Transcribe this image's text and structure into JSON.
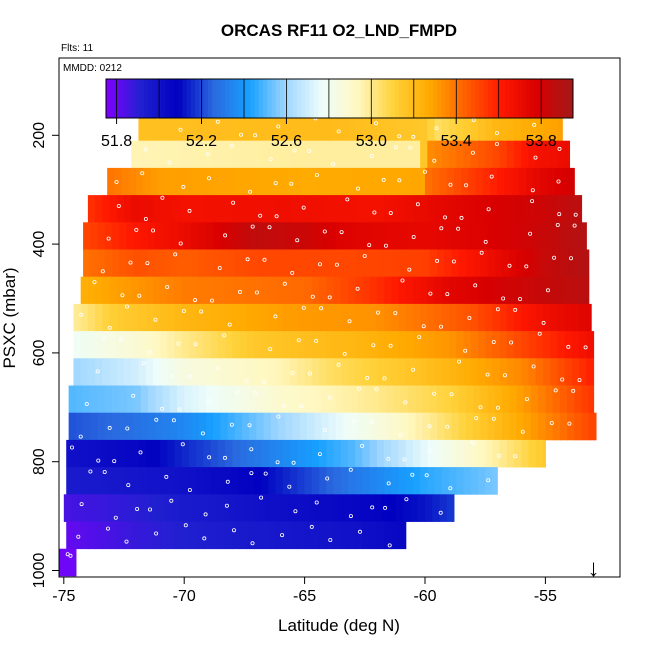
{
  "chart_data": {
    "type": "heatmap",
    "title": "ORCAS RF11 O2_LND_FMPD",
    "flights_label": "Flts: 11",
    "date_label": "MMDD: 0212",
    "xlabel": "Latitude (deg N)",
    "ylabel": "PSXC (mbar)",
    "xlim": [
      -75.2,
      -51.9
    ],
    "ylim": [
      1012,
      58
    ],
    "x_ticks": [
      -75,
      -70,
      -65,
      -60,
      -55
    ],
    "y_ticks": [
      200,
      400,
      600,
      800,
      1000
    ],
    "colorbar": {
      "vmin": 51.75,
      "vmax": 53.95,
      "tick_values": [
        51.8,
        52.2,
        52.6,
        53.0,
        53.4,
        53.8
      ],
      "tick_labels": [
        "51.8",
        "52.2",
        "52.6",
        "53.0",
        "53.4",
        "53.8"
      ],
      "colors": [
        "#8000ff",
        "#2020d0",
        "#0000c0",
        "#2a6ae0",
        "#17a0ff",
        "#9fd6ff",
        "#eefdfb",
        "#fff8c2",
        "#ffd23a",
        "#ffaa00",
        "#ff6000",
        "#ff1800",
        "#d80000",
        "#a31a1a"
      ]
    },
    "flight_track_marker": {
      "latitude": -53.0,
      "symbol": "↓"
    },
    "layers": [
      {
        "p": 185,
        "lat_min": -71.9,
        "lat_max": -54.3,
        "anchors": [
          [
            -71.9,
            53.18
          ],
          [
            -64,
            53.2
          ],
          [
            -60,
            53.15
          ],
          [
            -59.5,
            53.05
          ],
          [
            -57,
            53.22
          ],
          [
            -54.3,
            53.3
          ]
        ]
      },
      {
        "p": 235,
        "lat_min": -72.2,
        "lat_max": -54.0,
        "anchors": [
          [
            -72.2,
            52.95
          ],
          [
            -65,
            52.98
          ],
          [
            -60.1,
            52.98
          ],
          [
            -60,
            53.33
          ],
          [
            -57,
            53.5
          ],
          [
            -55.5,
            53.65
          ],
          [
            -54,
            53.7
          ]
        ]
      },
      {
        "p": 285,
        "lat_min": -73.2,
        "lat_max": -53.8,
        "anchors": [
          [
            -73.2,
            53.4
          ],
          [
            -71,
            53.3
          ],
          [
            -65,
            53.27
          ],
          [
            -60.1,
            53.28
          ],
          [
            -60,
            53.4
          ],
          [
            -57,
            53.6
          ],
          [
            -55,
            53.75
          ],
          [
            -53.8,
            53.8
          ]
        ]
      },
      {
        "p": 335,
        "lat_min": -74.0,
        "lat_max": -53.5,
        "anchors": [
          [
            -74,
            53.55
          ],
          [
            -72,
            53.7
          ],
          [
            -70,
            53.66
          ],
          [
            -66,
            53.68
          ],
          [
            -62,
            53.66
          ],
          [
            -58,
            53.76
          ],
          [
            -55,
            53.82
          ],
          [
            -53.5,
            53.88
          ]
        ]
      },
      {
        "p": 385,
        "lat_min": -74.2,
        "lat_max": -53.3,
        "anchors": [
          [
            -74.2,
            53.5
          ],
          [
            -72,
            53.62
          ],
          [
            -70,
            53.7
          ],
          [
            -67,
            53.86
          ],
          [
            -65,
            53.82
          ],
          [
            -63,
            53.75
          ],
          [
            -60,
            53.72
          ],
          [
            -56,
            53.8
          ],
          [
            -53.3,
            53.9
          ]
        ]
      },
      {
        "p": 435,
        "lat_min": -74.2,
        "lat_max": -53.2,
        "anchors": [
          [
            -74.2,
            53.4
          ],
          [
            -72,
            53.48
          ],
          [
            -70,
            53.45
          ],
          [
            -67,
            53.5
          ],
          [
            -63,
            53.5
          ],
          [
            -60,
            53.52
          ],
          [
            -58,
            53.64
          ],
          [
            -55,
            53.84
          ],
          [
            -53.2,
            53.9
          ]
        ]
      },
      {
        "p": 485,
        "lat_min": -74.3,
        "lat_max": -53.2,
        "anchors": [
          [
            -74.3,
            53.25
          ],
          [
            -72,
            53.32
          ],
          [
            -70,
            53.38
          ],
          [
            -65,
            53.42
          ],
          [
            -62,
            53.56
          ],
          [
            -59,
            53.74
          ],
          [
            -56,
            53.82
          ],
          [
            -53.2,
            53.88
          ]
        ]
      },
      {
        "p": 535,
        "lat_min": -74.6,
        "lat_max": -53.1,
        "anchors": [
          [
            -74.6,
            52.98
          ],
          [
            -73,
            53.12
          ],
          [
            -70,
            53.22
          ],
          [
            -66,
            53.3
          ],
          [
            -62,
            53.33
          ],
          [
            -58,
            53.48
          ],
          [
            -55,
            53.68
          ],
          [
            -53.1,
            53.75
          ]
        ]
      },
      {
        "p": 585,
        "lat_min": -74.6,
        "lat_max": -53.0,
        "anchors": [
          [
            -74.6,
            52.78
          ],
          [
            -72,
            52.88
          ],
          [
            -70,
            53.0
          ],
          [
            -67,
            53.15
          ],
          [
            -63,
            53.22
          ],
          [
            -59,
            53.32
          ],
          [
            -56,
            53.5
          ],
          [
            -53,
            53.68
          ]
        ]
      },
      {
        "p": 635,
        "lat_min": -74.6,
        "lat_max": -53.0,
        "anchors": [
          [
            -74.6,
            52.6
          ],
          [
            -72,
            52.7
          ],
          [
            -70,
            52.85
          ],
          [
            -66,
            52.95
          ],
          [
            -64,
            53.05
          ],
          [
            -60,
            53.18
          ],
          [
            -56,
            53.35
          ],
          [
            -53,
            53.6
          ]
        ]
      },
      {
        "p": 685,
        "lat_min": -74.8,
        "lat_max": -53.0,
        "anchors": [
          [
            -74.8,
            52.5
          ],
          [
            -72,
            52.55
          ],
          [
            -70,
            52.72
          ],
          [
            -66,
            52.9
          ],
          [
            -62,
            53.0
          ],
          [
            -59,
            53.1
          ],
          [
            -56,
            53.3
          ],
          [
            -53,
            53.55
          ]
        ]
      },
      {
        "p": 735,
        "lat_min": -74.8,
        "lat_max": -52.9,
        "anchors": [
          [
            -74.8,
            52.22
          ],
          [
            -72,
            52.28
          ],
          [
            -70,
            52.35
          ],
          [
            -66,
            52.6
          ],
          [
            -62,
            52.85
          ],
          [
            -60,
            52.98
          ],
          [
            -57,
            53.2
          ],
          [
            -55,
            53.35
          ],
          [
            -52.9,
            53.52
          ]
        ]
      },
      {
        "p": 785,
        "lat_min": -74.9,
        "lat_max": -55.0,
        "anchors": [
          [
            -74.9,
            52.0
          ],
          [
            -72,
            52.05
          ],
          [
            -70,
            52.15
          ],
          [
            -67,
            52.3
          ],
          [
            -63,
            52.5
          ],
          [
            -60,
            52.75
          ],
          [
            -57,
            52.98
          ],
          [
            -55,
            53.15
          ]
        ]
      },
      {
        "p": 835,
        "lat_min": -74.9,
        "lat_max": -57.0,
        "anchors": [
          [
            -74.9,
            51.95
          ],
          [
            -72,
            51.98
          ],
          [
            -70,
            52.0
          ],
          [
            -67,
            52.08
          ],
          [
            -63,
            52.3
          ],
          [
            -60,
            52.45
          ],
          [
            -57,
            52.55
          ]
        ]
      },
      {
        "p": 885,
        "lat_min": -75.0,
        "lat_max": -58.8,
        "anchors": [
          [
            -75,
            51.85
          ],
          [
            -72,
            51.9
          ],
          [
            -70,
            51.95
          ],
          [
            -67,
            52.0
          ],
          [
            -63,
            52.05
          ],
          [
            -60,
            52.12
          ],
          [
            -58.8,
            52.18
          ]
        ]
      },
      {
        "p": 935,
        "lat_min": -74.9,
        "lat_max": -60.8,
        "anchors": [
          [
            -74.9,
            51.8
          ],
          [
            -72,
            51.88
          ],
          [
            -70,
            51.92
          ],
          [
            -67,
            51.96
          ],
          [
            -63,
            52.0
          ],
          [
            -60.8,
            52.05
          ]
        ]
      },
      {
        "p": 985,
        "lat_min": -75.2,
        "lat_max": -74.5,
        "anchors": [
          [
            -75.2,
            51.78
          ],
          [
            -74.5,
            51.78
          ]
        ]
      }
    ]
  }
}
